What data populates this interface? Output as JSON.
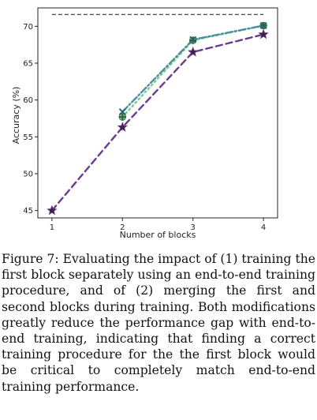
{
  "chart_data": {
    "type": "line",
    "xlabel": "Number of blocks",
    "ylabel": "Accuracy (%)",
    "xlim": [
      0.8,
      4.2
    ],
    "ylim": [
      44,
      72.5
    ],
    "x_ticks": [
      1,
      2,
      3,
      4
    ],
    "y_ticks": [
      45,
      50,
      55,
      60,
      65,
      70
    ],
    "grid": false,
    "legend": "none",
    "reference_line": {
      "y": 71.6,
      "style": "dashed",
      "color": "#444444"
    },
    "series": [
      {
        "x": [
          1,
          2,
          3,
          4
        ],
        "y": [
          45.0,
          56.3,
          66.5,
          68.9
        ],
        "color": "#6a3d8a",
        "style": "dashed",
        "marker": "star"
      },
      {
        "x": [
          2,
          3,
          4
        ],
        "y": [
          57.7,
          68.1,
          70.1
        ],
        "color": "#7fc98a",
        "style": "dotted",
        "marker": "plus"
      },
      {
        "x": [
          2,
          3,
          4
        ],
        "y": [
          58.4,
          68.2,
          70.1
        ],
        "color": "#4a8fa0",
        "style": "dashdot",
        "marker": "x"
      }
    ]
  },
  "caption": {
    "text": "Figure 7: Evaluating the impact of (1) training the first block separately using an end-to-end training procedure, and of (2) merging the first and second blocks during training. Both modifications greatly reduce the performance gap with end-to-end training, indicating that finding a correct training procedure for the the first block would be critical to completely match end-to-end training performance."
  }
}
